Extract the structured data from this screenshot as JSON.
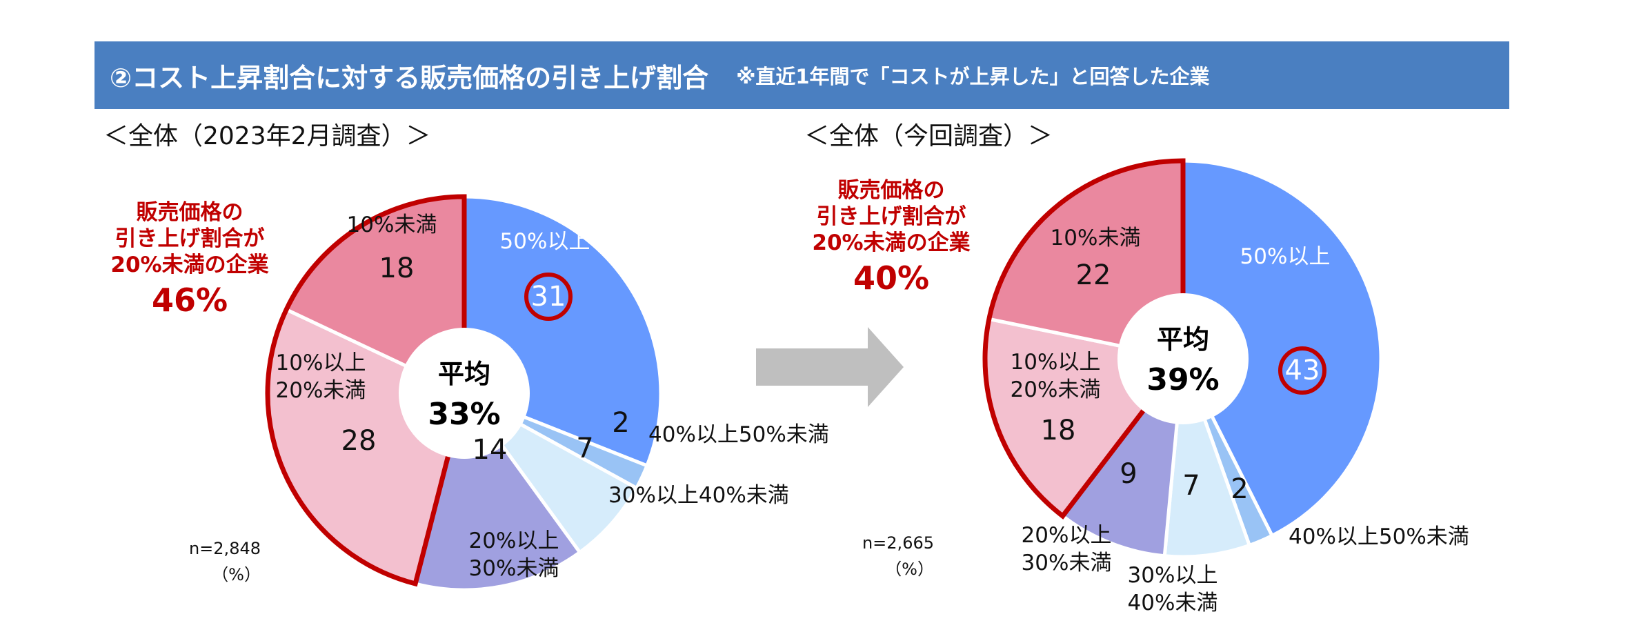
{
  "header": {
    "title": "②コスト上昇割合に対する販売価格の引き上げ割合",
    "note": "※直近1年間で「コストが上昇した」と回答した企業"
  },
  "colors": {
    "header_bg": "#4a7fc1",
    "callout": "#c00000",
    "arrow": "#bfbfbf",
    "slice_50_plus": "#6699ff",
    "slice_40_50": "#99c3f5",
    "slice_30_40": "#d6ecfb",
    "slice_20_30": "#a0a0e0",
    "slice_10_20": "#f3c0cf",
    "slice_under_10": "#ea889f"
  },
  "chart_data": [
    {
      "type": "pie",
      "title": "＜全体（2023年2月調査）＞",
      "categories": [
        "50%以上",
        "40%以上50%未満",
        "30%以上40%未満",
        "20%以上30%未満",
        "10%以上20%未満",
        "10%未満"
      ],
      "values": [
        31,
        2,
        7,
        14,
        28,
        18
      ],
      "unit": "（%）",
      "sample": "n=2,848",
      "center_label": "平均",
      "center_value": "33%",
      "callout_lines": [
        "販売価格の",
        "引き上げ割合が",
        "20%未満の企業"
      ],
      "callout_value": "46%",
      "highlighted": "50%以上",
      "bracketed_categories": [
        "10%以上20%未満",
        "10%未満"
      ]
    },
    {
      "type": "pie",
      "title": "＜全体（今回調査）＞",
      "categories": [
        "50%以上",
        "40%以上50%未満",
        "30%以上40%未満",
        "20%以上30%未満",
        "10%以上20%未満",
        "10%未満"
      ],
      "values": [
        43,
        2,
        7,
        9,
        18,
        22
      ],
      "unit": "（%）",
      "sample": "n=2,665",
      "center_label": "平均",
      "center_value": "39%",
      "callout_lines": [
        "販売価格の",
        "引き上げ割合が",
        "20%未満の企業"
      ],
      "callout_value": "40%",
      "highlighted": "50%以上",
      "bracketed_categories": [
        "10%以上20%未満",
        "10%未満"
      ]
    }
  ]
}
